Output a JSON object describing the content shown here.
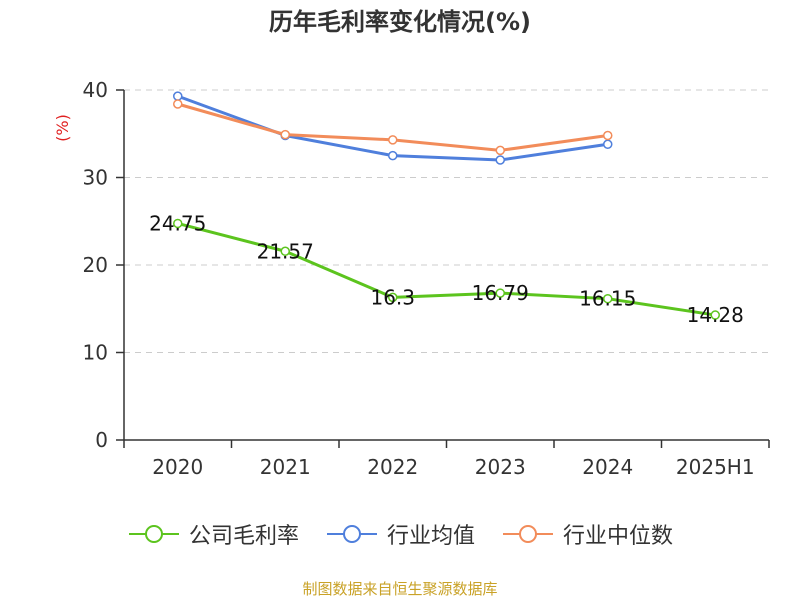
{
  "title": "历年毛利率变化情况(%)",
  "source_note": "制图数据来自恒生聚源数据库",
  "colors": {
    "company": "#5cc41e",
    "industry_avg": "#4f7fdc",
    "industry_median": "#f28c5a",
    "axis": "#333333",
    "grid": "#cccccc",
    "ylabel": "#e02020"
  },
  "chart_data": {
    "type": "line",
    "title": "历年毛利率变化情况(%)",
    "ylabel": "(%)",
    "xlabel": "",
    "categories": [
      "2020",
      "2021",
      "2022",
      "2023",
      "2024",
      "2025H1"
    ],
    "ylim": [
      0,
      40
    ],
    "yticks": [
      0,
      10,
      20,
      30,
      40
    ],
    "grid": true,
    "legend_position": "bottom",
    "series": [
      {
        "name": "公司毛利率",
        "color_key": "company",
        "values": [
          24.75,
          21.57,
          16.3,
          16.79,
          16.15,
          14.28
        ],
        "labels": [
          "24.75",
          "21.57",
          "16.3",
          "16.79",
          "16.15",
          "14.28"
        ]
      },
      {
        "name": "行业均值",
        "color_key": "industry_avg",
        "values": [
          39.3,
          34.8,
          32.5,
          32.0,
          33.8,
          null
        ],
        "labels": null
      },
      {
        "name": "行业中位数",
        "color_key": "industry_median",
        "values": [
          38.4,
          34.9,
          34.3,
          33.1,
          34.8,
          null
        ],
        "labels": null
      }
    ]
  }
}
